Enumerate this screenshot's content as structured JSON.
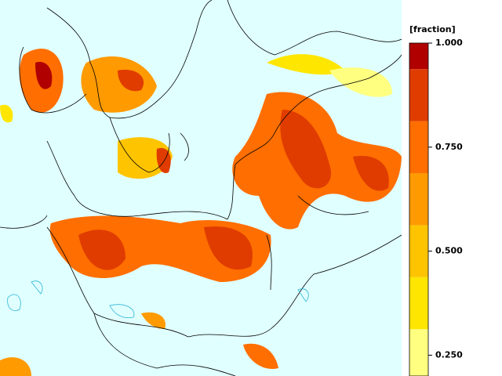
{
  "colorbar": {
    "label": "[fraction]",
    "range": [
      0.2,
      1.0
    ],
    "ticks": [
      {
        "value": 1.0,
        "label": "1.000"
      },
      {
        "value": 0.75,
        "label": "0.750"
      },
      {
        "value": 0.5,
        "label": "0.500"
      },
      {
        "value": 0.25,
        "label": "0.250"
      }
    ],
    "bands": [
      {
        "from": 0.2,
        "to": 0.3125,
        "color": "#ffff80"
      },
      {
        "from": 0.3125,
        "to": 0.4375,
        "color": "#ffe600"
      },
      {
        "from": 0.4375,
        "to": 0.5625,
        "color": "#ffc400"
      },
      {
        "from": 0.5625,
        "to": 0.6875,
        "color": "#ff9a00"
      },
      {
        "from": 0.6875,
        "to": 0.8125,
        "color": "#ff6e00"
      },
      {
        "from": 0.8125,
        "to": 0.9375,
        "color": "#e03c00"
      },
      {
        "from": 0.9375,
        "to": 1.0,
        "color": "#b00000"
      }
    ]
  }
}
